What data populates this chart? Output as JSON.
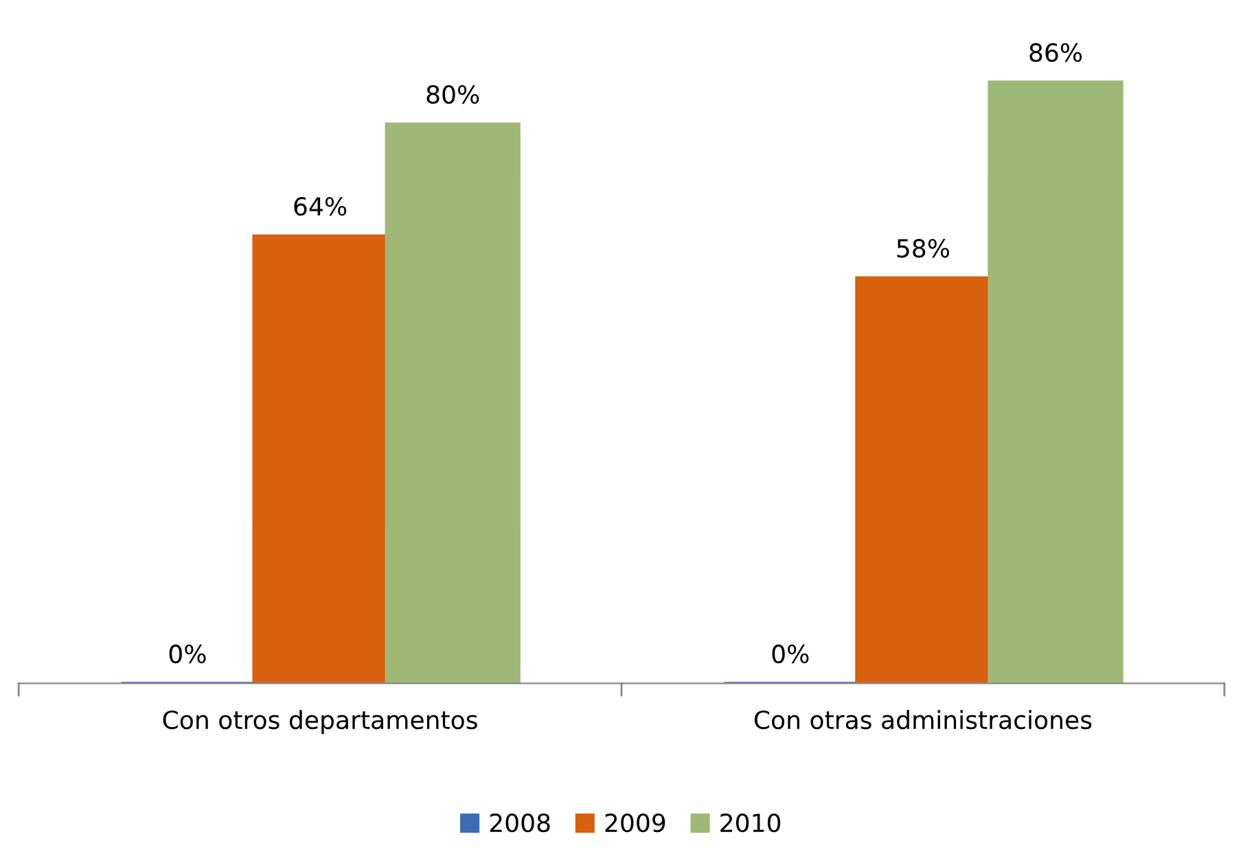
{
  "chart_data": {
    "type": "bar",
    "categories": [
      "Con otros departamentos",
      "Con otras administraciones"
    ],
    "series": [
      {
        "name": "2008",
        "color": "#3d6cb3",
        "values": [
          0,
          0
        ],
        "value_labels": [
          "0%",
          "0%"
        ]
      },
      {
        "name": "2009",
        "color": "#d9600e",
        "values": [
          64,
          58
        ],
        "value_labels": [
          "64%",
          "58%"
        ]
      },
      {
        "name": "2010",
        "color": "#9fb877",
        "values": [
          80,
          86
        ],
        "value_labels": [
          "80%",
          "86%"
        ]
      }
    ],
    "legend": "bottom",
    "tick_labels": "x"
  }
}
